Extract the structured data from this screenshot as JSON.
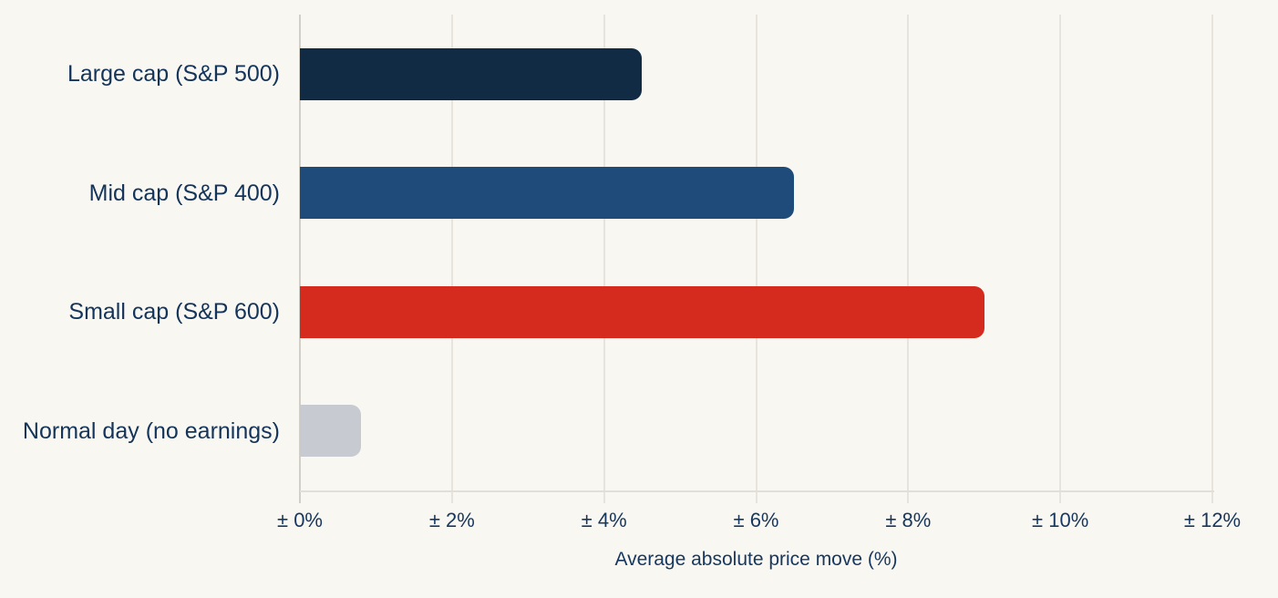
{
  "chart_data": {
    "type": "bar",
    "orientation": "horizontal",
    "categories": [
      "Large cap (S&P 500)",
      "Mid cap (S&P 400)",
      "Small cap (S&P 600)",
      "Normal day (no earnings)"
    ],
    "values": [
      4.5,
      6.5,
      9.0,
      0.8
    ],
    "series_colors": [
      "#112b45",
      "#1e4b7a",
      "#d52b1e",
      "#c7cad1"
    ],
    "xlabel": "Average absolute price move (%)",
    "xlim": [
      0,
      12
    ],
    "xticks": [
      0,
      2,
      4,
      6,
      8,
      10,
      12
    ],
    "xtick_labels": [
      "± 0%",
      "± 2%",
      "± 4%",
      "± 6%",
      "± 8%",
      "± 10%",
      "± 12%"
    ],
    "grid": true,
    "legend": false,
    "background": "#f9f7f1",
    "text_color": "#17375e"
  }
}
